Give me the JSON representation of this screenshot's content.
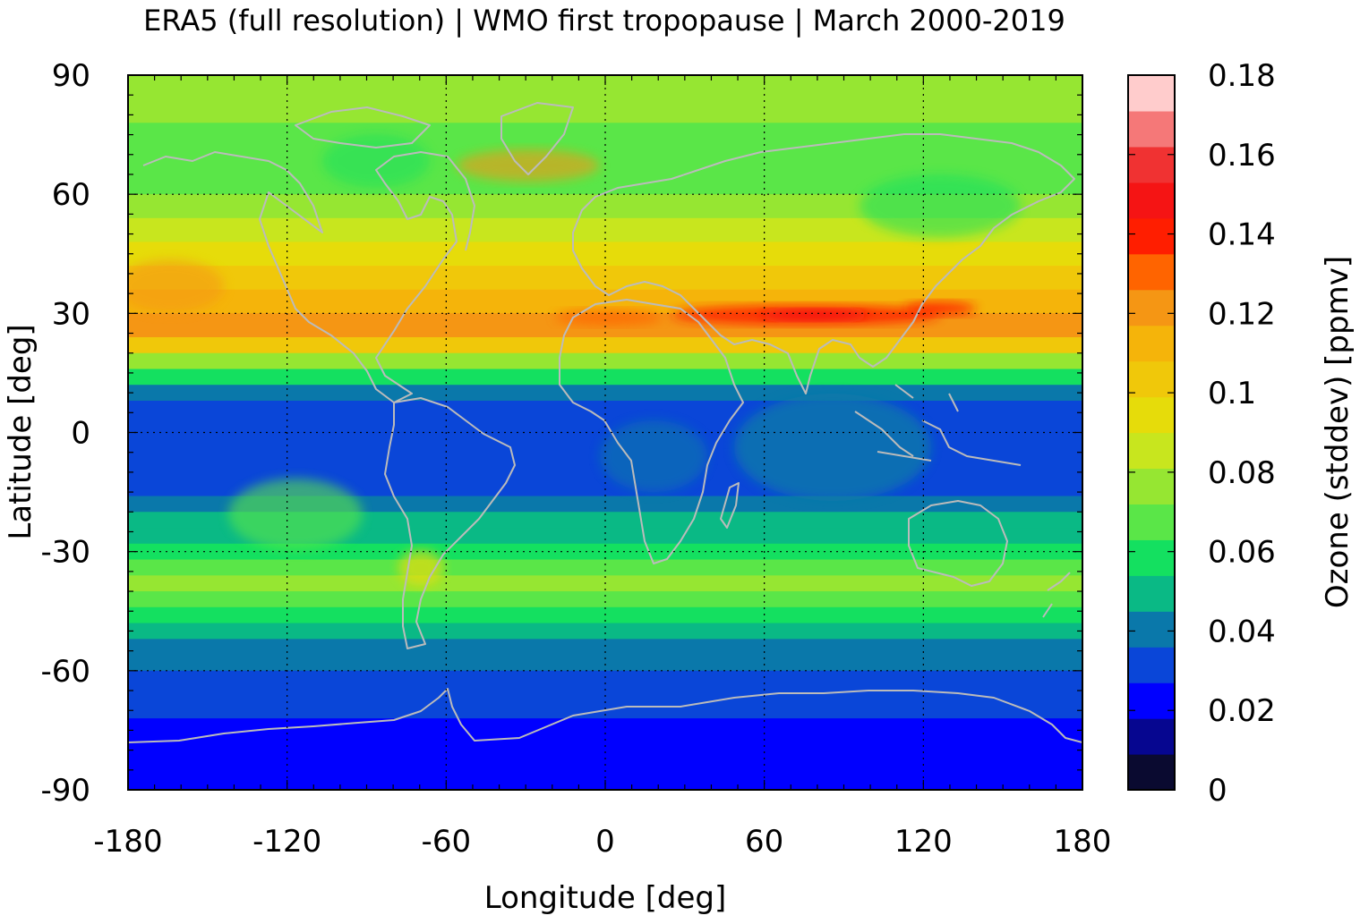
{
  "title": "ERA5 (full resolution) | WMO first tropopause | March 2000-2019",
  "chart_data": {
    "type": "heatmap",
    "title": "ERA5 (full resolution) | WMO first tropopause | March 2000-2019",
    "xlabel": "Longitude [deg]",
    "ylabel": "Latitude [deg]",
    "xlim": [
      -180,
      180
    ],
    "ylim": [
      -90,
      90
    ],
    "xticks": [
      -180,
      -120,
      -60,
      0,
      60,
      120,
      180
    ],
    "xtick_labels": [
      "-180",
      "-120",
      "-60",
      "0",
      "60",
      "120",
      "180"
    ],
    "yticks": [
      90,
      60,
      30,
      0,
      -30,
      -60,
      -90
    ],
    "ytick_labels": [
      "90",
      "60",
      "30",
      "0",
      "-30",
      "-60",
      "-90"
    ],
    "grid": true,
    "coastlines": true,
    "colorbar": {
      "label": "Ozone (stddev) [ppmv]",
      "range": [
        0,
        0.18
      ],
      "ticks": [
        0,
        0.02,
        0.04,
        0.06,
        0.08,
        0.1,
        0.12,
        0.14,
        0.16,
        0.18
      ],
      "tick_labels": [
        "0",
        "0.02",
        "0.04",
        "0.06",
        "0.08",
        "0.1",
        "0.12",
        "0.14",
        "0.16",
        "0.18"
      ],
      "levels": [
        "#0a0a30",
        "#060690",
        "#0000ff",
        "#0a46d8",
        "#0a78aa",
        "#0ab985",
        "#14e060",
        "#5ae648",
        "#96e632",
        "#c8e61e",
        "#e6dc0a",
        "#f0c80a",
        "#f5b40a",
        "#f59614",
        "#ff6400",
        "#ff1e00",
        "#f51414",
        "#f03232",
        "#f57878",
        "#ffcccc"
      ]
    },
    "latitude_profile": {
      "lat": [
        90,
        84,
        78,
        72,
        66,
        60,
        54,
        48,
        42,
        36,
        30,
        24,
        20,
        16,
        12,
        8,
        4,
        0,
        -4,
        -8,
        -12,
        -16,
        -20,
        -24,
        -28,
        -32,
        -36,
        -40,
        -44,
        -48,
        -52,
        -56,
        -60,
        -64,
        -68,
        -72,
        -76,
        -80,
        -84,
        -90
      ],
      "value": [
        0.08,
        0.075,
        0.068,
        0.07,
        0.072,
        0.078,
        0.085,
        0.093,
        0.1,
        0.108,
        0.118,
        0.1,
        0.075,
        0.055,
        0.042,
        0.034,
        0.03,
        0.03,
        0.031,
        0.033,
        0.036,
        0.042,
        0.048,
        0.052,
        0.06,
        0.07,
        0.075,
        0.068,
        0.058,
        0.05,
        0.044,
        0.038,
        0.035,
        0.032,
        0.029,
        0.026,
        0.024,
        0.022,
        0.023,
        0.028
      ]
    }
  }
}
